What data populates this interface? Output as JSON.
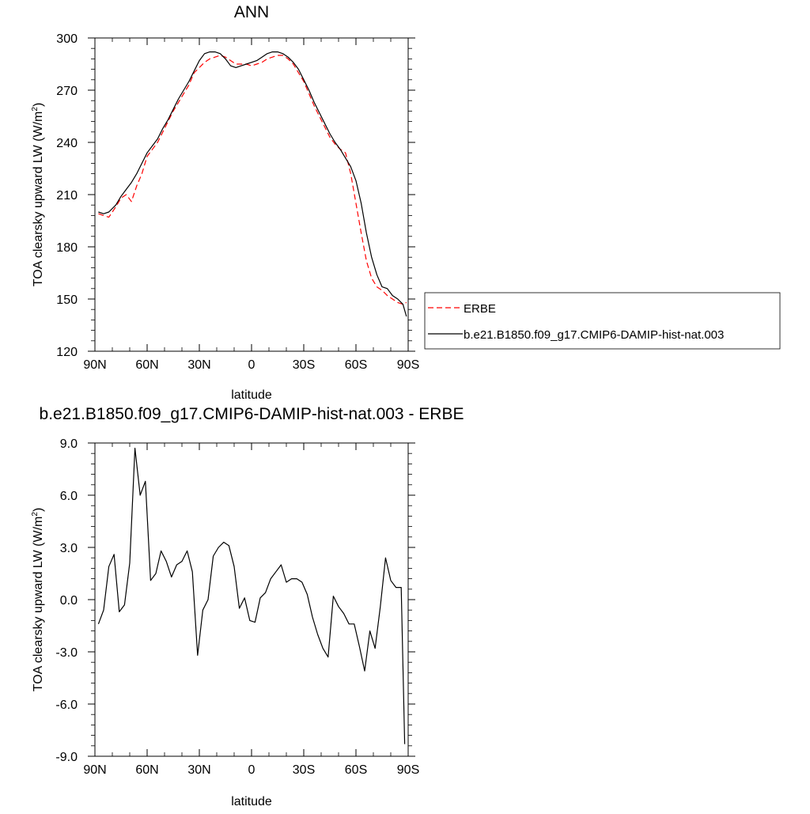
{
  "chart_data": [
    {
      "type": "line",
      "title": "ANN",
      "xlabel": "latitude",
      "ylabel_main": "TOA clearsky upward LW (W/m",
      "ylabel_sup": "2",
      "ylabel_close": ")",
      "xlim": [
        90,
        -90
      ],
      "ylim": [
        120,
        300
      ],
      "xticks": [
        {
          "value": 90,
          "label": "90N"
        },
        {
          "value": 60,
          "label": "60N"
        },
        {
          "value": 30,
          "label": "30N"
        },
        {
          "value": 0,
          "label": "0"
        },
        {
          "value": -30,
          "label": "30S"
        },
        {
          "value": -60,
          "label": "60S"
        },
        {
          "value": -90,
          "label": "90S"
        }
      ],
      "yticks": [
        {
          "value": 120,
          "label": "120"
        },
        {
          "value": 150,
          "label": "150"
        },
        {
          "value": 180,
          "label": "180"
        },
        {
          "value": 210,
          "label": "210"
        },
        {
          "value": 240,
          "label": "240"
        },
        {
          "value": 270,
          "label": "270"
        },
        {
          "value": 300,
          "label": "300"
        }
      ],
      "legend_position": "right",
      "series": [
        {
          "name": "ERBE",
          "color": "#ff0000",
          "dash": "dashed",
          "x": [
            88,
            85,
            82,
            78,
            75,
            72,
            69,
            66,
            63,
            60,
            57,
            54,
            51,
            48,
            45,
            42,
            39,
            36,
            33,
            30,
            27,
            24,
            21,
            18,
            15,
            12,
            9,
            6,
            3,
            0,
            -3,
            -6,
            -9,
            -12,
            -15,
            -18,
            -21,
            -24,
            -27,
            -30,
            -33,
            -36,
            -39,
            -42,
            -45,
            -48,
            -51,
            -54,
            -57,
            -60,
            -63,
            -66,
            -69,
            -72,
            -75,
            -78,
            -81,
            -84,
            -87,
            -89
          ],
          "y": [
            199,
            198,
            197,
            203,
            208,
            210,
            206,
            215,
            222,
            232,
            236,
            240,
            246,
            252,
            258,
            263,
            268,
            273,
            280,
            283,
            286,
            288,
            289,
            290,
            289,
            287,
            285,
            285,
            285,
            284,
            285,
            286,
            288,
            289,
            290,
            290,
            288,
            285,
            280,
            275,
            268,
            261,
            255,
            249,
            243,
            239,
            236,
            234,
            222,
            205,
            188,
            172,
            162,
            157,
            155,
            152,
            150,
            148,
            147,
            148
          ]
        },
        {
          "name": "b.e21.B1850.f09_g17.CMIP6-DAMIP-hist-nat.003",
          "color": "#000000",
          "dash": "solid",
          "x": [
            88,
            85,
            82,
            78,
            75,
            72,
            69,
            66,
            63,
            60,
            57,
            54,
            51,
            48,
            45,
            42,
            39,
            36,
            33,
            30,
            27,
            24,
            21,
            18,
            15,
            12,
            9,
            6,
            3,
            0,
            -3,
            -6,
            -9,
            -12,
            -15,
            -18,
            -21,
            -24,
            -27,
            -30,
            -33,
            -36,
            -39,
            -42,
            -45,
            -48,
            -51,
            -54,
            -57,
            -60,
            -63,
            -66,
            -69,
            -72,
            -75,
            -78,
            -81,
            -84,
            -87,
            -89
          ],
          "y": [
            200,
            199,
            200,
            204,
            209,
            213,
            217,
            222,
            228,
            234,
            238,
            242,
            248,
            253,
            259,
            265,
            270,
            275,
            281,
            287,
            291,
            292,
            292,
            291,
            288,
            284,
            283,
            284,
            285,
            286,
            287,
            289,
            291,
            292,
            292,
            291,
            289,
            286,
            282,
            276,
            270,
            263,
            257,
            251,
            245,
            240,
            236,
            231,
            226,
            218,
            205,
            188,
            174,
            164,
            157,
            156,
            152,
            150,
            147,
            140
          ]
        }
      ]
    },
    {
      "type": "line",
      "title": "b.e21.B1850.f09_g17.CMIP6-DAMIP-hist-nat.003 - ERBE",
      "xlabel": "latitude",
      "ylabel_main": "TOA clearsky upward LW (W/m",
      "ylabel_sup": "2",
      "ylabel_close": ")",
      "xlim": [
        90,
        -90
      ],
      "ylim": [
        -9,
        9
      ],
      "xticks": [
        {
          "value": 90,
          "label": "90N"
        },
        {
          "value": 60,
          "label": "60N"
        },
        {
          "value": 30,
          "label": "30N"
        },
        {
          "value": 0,
          "label": "0"
        },
        {
          "value": -30,
          "label": "30S"
        },
        {
          "value": -60,
          "label": "60S"
        },
        {
          "value": -90,
          "label": "90S"
        }
      ],
      "yticks": [
        {
          "value": -9,
          "label": "-9.0"
        },
        {
          "value": -6,
          "label": "-6.0"
        },
        {
          "value": -3,
          "label": "-3.0"
        },
        {
          "value": 0,
          "label": "0.0"
        },
        {
          "value": 3,
          "label": "3.0"
        },
        {
          "value": 6,
          "label": "6.0"
        },
        {
          "value": 9,
          "label": "9.0"
        }
      ],
      "series": [
        {
          "color": "#000000",
          "dash": "solid",
          "x": [
            88,
            85,
            82,
            79,
            76,
            73,
            70,
            67,
            64,
            61,
            58,
            55,
            52,
            49,
            46,
            43,
            40,
            37,
            34,
            31,
            28,
            25,
            22,
            19,
            16,
            13,
            10,
            7,
            4,
            1,
            -2,
            -5,
            -8,
            -11,
            -14,
            -17,
            -20,
            -23,
            -26,
            -29,
            -32,
            -35,
            -38,
            -41,
            -44,
            -47,
            -50,
            -53,
            -56,
            -59,
            -62,
            -65,
            -68,
            -71,
            -74,
            -77,
            -80,
            -83,
            -86,
            -88
          ],
          "y": [
            -1.4,
            -0.6,
            1.9,
            2.6,
            -0.7,
            -0.3,
            2.1,
            8.7,
            6.0,
            6.8,
            1.1,
            1.5,
            2.8,
            2.2,
            1.3,
            2.0,
            2.2,
            2.8,
            1.6,
            -3.2,
            -0.6,
            0.0,
            2.5,
            3.0,
            3.3,
            3.1,
            1.9,
            -0.5,
            0.1,
            -1.2,
            -1.3,
            0.1,
            0.4,
            1.2,
            1.6,
            2.0,
            1.0,
            1.2,
            1.2,
            1.0,
            0.3,
            -1.0,
            -2.0,
            -2.8,
            -3.3,
            0.2,
            -0.4,
            -0.8,
            -1.4,
            -1.4,
            -2.7,
            -4.1,
            -1.8,
            -2.8,
            -0.4,
            2.4,
            1.1,
            0.7,
            0.7,
            -8.3
          ]
        }
      ]
    }
  ]
}
